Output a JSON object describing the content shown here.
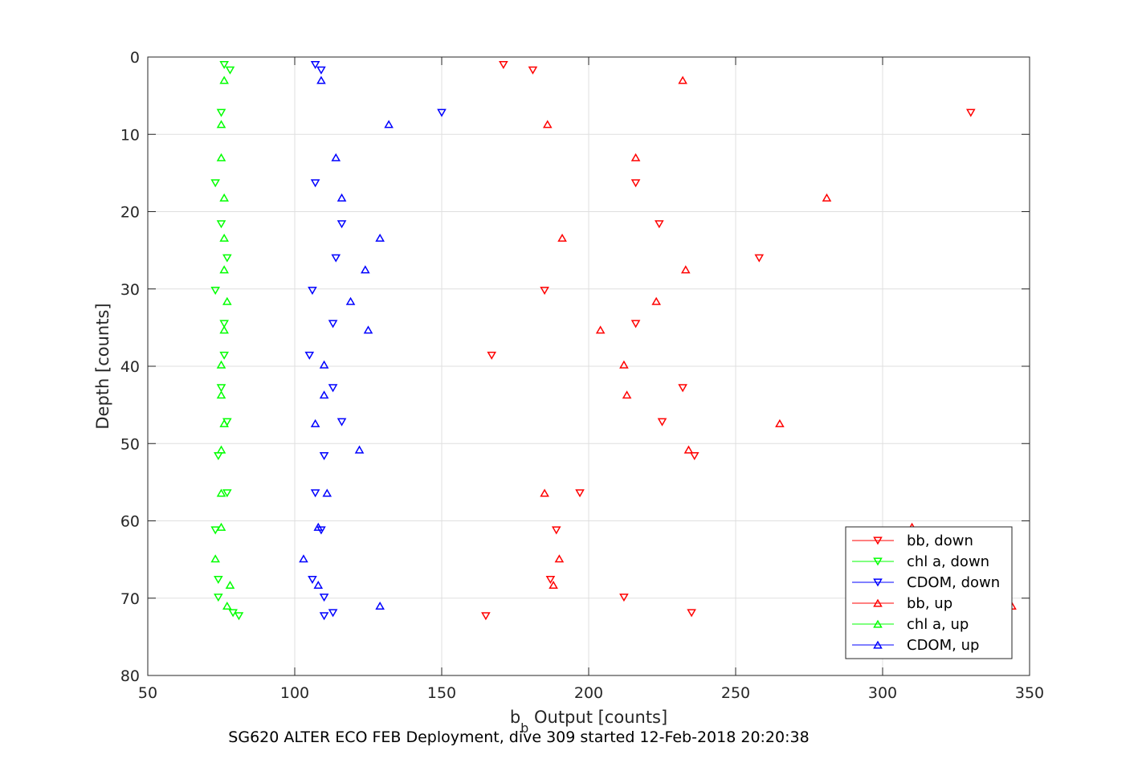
{
  "chart_data": {
    "type": "scatter",
    "title": "",
    "caption": "SG620 ALTER ECO FEB Deployment, dive 309 started 12-Feb-2018 20:20:38",
    "xlabel_main": "b",
    "xlabel_sub": "b",
    "xlabel_rest": " Output [counts]",
    "ylabel": "Depth [counts]",
    "xlim": [
      50,
      350
    ],
    "ylim": [
      0,
      80
    ],
    "y_reversed": true,
    "grid": true,
    "legend_position": "bottom-right",
    "x_ticks": [
      "50",
      "100",
      "150",
      "200",
      "250",
      "300",
      "350"
    ],
    "y_ticks": [
      "0",
      "10",
      "20",
      "30",
      "40",
      "50",
      "60",
      "70",
      "80"
    ],
    "series": [
      {
        "name": "bb, down",
        "color": "#ff0000",
        "marker": "triangle-down",
        "points": [
          [
            171,
            1.0
          ],
          [
            181,
            1.7
          ],
          [
            330,
            7.2
          ],
          [
            216,
            16.3
          ],
          [
            224,
            21.6
          ],
          [
            258,
            26.0
          ],
          [
            185,
            30.2
          ],
          [
            216,
            34.5
          ],
          [
            167,
            38.6
          ],
          [
            232,
            42.8
          ],
          [
            225,
            47.2
          ],
          [
            236,
            51.6
          ],
          [
            197,
            56.4
          ],
          [
            189,
            61.2
          ],
          [
            187,
            67.6
          ],
          [
            212,
            69.9
          ],
          [
            235,
            71.9
          ],
          [
            165,
            72.3
          ]
        ]
      },
      {
        "name": "chl a, down",
        "color": "#00ff00",
        "marker": "triangle-down",
        "points": [
          [
            76,
            1.0
          ],
          [
            78,
            1.7
          ],
          [
            75,
            7.2
          ],
          [
            73,
            16.3
          ],
          [
            75,
            21.6
          ],
          [
            77,
            26.0
          ],
          [
            73,
            30.2
          ],
          [
            76,
            34.5
          ],
          [
            76,
            38.6
          ],
          [
            75,
            42.8
          ],
          [
            77,
            47.2
          ],
          [
            74,
            51.6
          ],
          [
            77,
            56.4
          ],
          [
            73,
            61.2
          ],
          [
            74,
            67.6
          ],
          [
            74,
            69.9
          ],
          [
            79,
            71.9
          ],
          [
            81,
            72.3
          ]
        ]
      },
      {
        "name": "CDOM, down",
        "color": "#0000ff",
        "marker": "triangle-down",
        "points": [
          [
            107,
            1.0
          ],
          [
            109,
            1.7
          ],
          [
            150,
            7.2
          ],
          [
            107,
            16.3
          ],
          [
            116,
            21.6
          ],
          [
            114,
            26.0
          ],
          [
            106,
            30.2
          ],
          [
            113,
            34.5
          ],
          [
            105,
            38.6
          ],
          [
            113,
            42.8
          ],
          [
            116,
            47.2
          ],
          [
            110,
            51.6
          ],
          [
            107,
            56.4
          ],
          [
            109,
            61.2
          ],
          [
            106,
            67.6
          ],
          [
            110,
            69.9
          ],
          [
            113,
            71.9
          ],
          [
            110,
            72.3
          ]
        ]
      },
      {
        "name": "bb, up",
        "color": "#ff0000",
        "marker": "triangle-up",
        "points": [
          [
            232,
            3.0
          ],
          [
            186,
            8.7
          ],
          [
            216,
            13.0
          ],
          [
            281,
            18.2
          ],
          [
            191,
            23.4
          ],
          [
            233,
            27.5
          ],
          [
            223,
            31.6
          ],
          [
            204,
            35.3
          ],
          [
            212,
            39.8
          ],
          [
            213,
            43.7
          ],
          [
            265,
            47.4
          ],
          [
            234,
            50.8
          ],
          [
            185,
            56.4
          ],
          [
            310,
            60.8
          ],
          [
            190,
            64.9
          ],
          [
            188,
            68.3
          ],
          [
            344,
            71.0
          ]
        ]
      },
      {
        "name": "chl a, up",
        "color": "#00ff00",
        "marker": "triangle-up",
        "points": [
          [
            76,
            3.0
          ],
          [
            75,
            8.7
          ],
          [
            75,
            13.0
          ],
          [
            76,
            18.2
          ],
          [
            76,
            23.4
          ],
          [
            76,
            27.5
          ],
          [
            77,
            31.6
          ],
          [
            76,
            35.3
          ],
          [
            75,
            39.8
          ],
          [
            75,
            43.7
          ],
          [
            76,
            47.4
          ],
          [
            75,
            50.8
          ],
          [
            75,
            56.4
          ],
          [
            75,
            60.8
          ],
          [
            73,
            64.9
          ],
          [
            78,
            68.3
          ],
          [
            77,
            71.0
          ]
        ]
      },
      {
        "name": "CDOM, up",
        "color": "#0000ff",
        "marker": "triangle-up",
        "points": [
          [
            109,
            3.0
          ],
          [
            132,
            8.7
          ],
          [
            114,
            13.0
          ],
          [
            116,
            18.2
          ],
          [
            129,
            23.4
          ],
          [
            124,
            27.5
          ],
          [
            119,
            31.6
          ],
          [
            125,
            35.3
          ],
          [
            110,
            39.8
          ],
          [
            110,
            43.7
          ],
          [
            107,
            47.4
          ],
          [
            122,
            50.8
          ],
          [
            111,
            56.4
          ],
          [
            108,
            60.8
          ],
          [
            103,
            64.9
          ],
          [
            108,
            68.3
          ],
          [
            129,
            71.0
          ]
        ]
      }
    ]
  }
}
